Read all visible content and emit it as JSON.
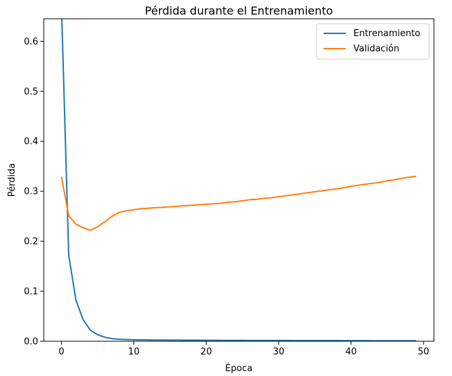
{
  "chart_data": {
    "type": "line",
    "title": "Pérdida durante el Entrenamiento",
    "xlabel": "Época",
    "ylabel": "Pérdida",
    "xlim": [
      -2.45,
      51.45
    ],
    "ylim": [
      0.0,
      0.645
    ],
    "xticks": [
      0,
      10,
      20,
      30,
      40,
      50
    ],
    "yticks": [
      0.0,
      0.1,
      0.2,
      0.3,
      0.4,
      0.5,
      0.6
    ],
    "xtick_labels": [
      "0",
      "10",
      "20",
      "30",
      "40",
      "50"
    ],
    "ytick_labels": [
      "0.0",
      "0.1",
      "0.2",
      "0.3",
      "0.4",
      "0.5",
      "0.6"
    ],
    "grid": false,
    "legend_position": "top-right",
    "x": [
      0,
      1,
      2,
      3,
      4,
      5,
      6,
      7,
      8,
      9,
      10,
      11,
      12,
      13,
      14,
      15,
      16,
      17,
      18,
      19,
      20,
      21,
      22,
      23,
      24,
      25,
      26,
      27,
      28,
      29,
      30,
      31,
      32,
      33,
      34,
      35,
      36,
      37,
      38,
      39,
      40,
      41,
      42,
      43,
      44,
      45,
      46,
      47,
      48,
      49
    ],
    "series": [
      {
        "name": "Entrenamiento",
        "color": "#1f77b4",
        "values": [
          0.67,
          0.172,
          0.082,
          0.043,
          0.022,
          0.013,
          0.008,
          0.005,
          0.004,
          0.0035,
          0.003,
          0.0028,
          0.0026,
          0.0025,
          0.0024,
          0.0023,
          0.0022,
          0.0021,
          0.002,
          0.002,
          0.0019,
          0.0019,
          0.0018,
          0.0018,
          0.0017,
          0.0017,
          0.0016,
          0.0016,
          0.0016,
          0.0015,
          0.0015,
          0.0015,
          0.0014,
          0.0014,
          0.0014,
          0.0013,
          0.0013,
          0.0013,
          0.0013,
          0.0012,
          0.0012,
          0.0012,
          0.0012,
          0.0011,
          0.0011,
          0.0011,
          0.0011,
          0.001,
          0.001,
          0.001
        ]
      },
      {
        "name": "Validación",
        "color": "#ff7f0e",
        "values": [
          0.329,
          0.251,
          0.234,
          0.227,
          0.222,
          0.229,
          0.239,
          0.25,
          0.258,
          0.261,
          0.263,
          0.265,
          0.266,
          0.267,
          0.268,
          0.269,
          0.27,
          0.271,
          0.272,
          0.273,
          0.274,
          0.275,
          0.276,
          0.278,
          0.279,
          0.281,
          0.283,
          0.284,
          0.286,
          0.287,
          0.289,
          0.291,
          0.293,
          0.295,
          0.297,
          0.299,
          0.301,
          0.303,
          0.305,
          0.307,
          0.31,
          0.312,
          0.314,
          0.316,
          0.318,
          0.321,
          0.323,
          0.326,
          0.328,
          0.33
        ]
      }
    ]
  }
}
